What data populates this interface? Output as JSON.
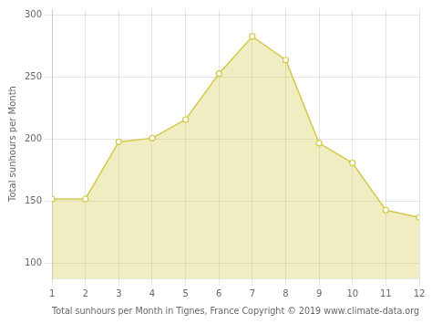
{
  "chart_data": {
    "type": "area",
    "x": [
      1,
      2,
      3,
      4,
      5,
      6,
      7,
      8,
      9,
      10,
      11,
      12
    ],
    "values": [
      152,
      152,
      198,
      201,
      216,
      253,
      283,
      264,
      197,
      181,
      143,
      137
    ],
    "color": "#D4C84A",
    "marker": "circle",
    "xlabel": "Total sunhours per Month in Tignes, France Copyright © 2019 www.climate-data.org",
    "ylabel": "Total sunhours per Month",
    "xlim": [
      1,
      12
    ],
    "xticks": [
      1,
      2,
      3,
      4,
      5,
      6,
      7,
      8,
      9,
      10,
      11,
      12
    ],
    "ylim": [
      88,
      305
    ],
    "yticks": [
      100,
      150,
      200,
      250,
      300
    ],
    "grid": true
  }
}
